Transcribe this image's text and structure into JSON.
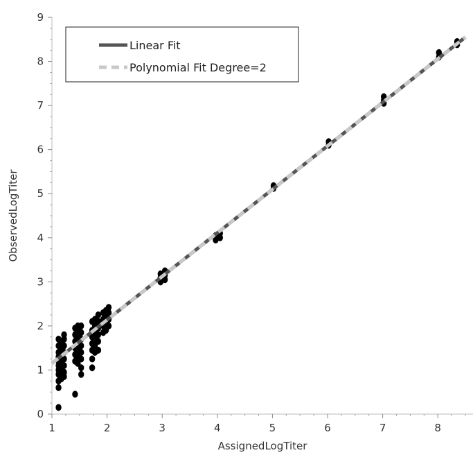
{
  "chart_data": {
    "type": "scatter",
    "xlabel": "AssignedLogTiter",
    "ylabel": "ObservedLogTiter",
    "xlim": [
      1,
      8.5
    ],
    "ylim": [
      0,
      9
    ],
    "xticks": [
      "1",
      "2",
      "3",
      "4",
      "5",
      "6",
      "7",
      "8"
    ],
    "yticks": [
      "0",
      "1",
      "2",
      "3",
      "4",
      "5",
      "6",
      "7",
      "8",
      "9"
    ],
    "legend_position": "top-left",
    "grid": false,
    "series": [
      {
        "name": "Linear Fit",
        "kind": "line",
        "color": "#555555",
        "x": [
          1,
          8.5
        ],
        "y": [
          1.15,
          8.55
        ]
      },
      {
        "name": "Polynomial Fit Degree=2",
        "kind": "dashed-line",
        "color": "#c8c8c8",
        "x": [
          1,
          8.5
        ],
        "y": [
          1.15,
          8.55
        ]
      }
    ],
    "points": [
      [
        1.12,
        0.15
      ],
      [
        1.12,
        0.6
      ],
      [
        1.12,
        0.75
      ],
      [
        1.12,
        0.9
      ],
      [
        1.12,
        1.0
      ],
      [
        1.12,
        1.1
      ],
      [
        1.12,
        1.2
      ],
      [
        1.12,
        1.3
      ],
      [
        1.12,
        1.4
      ],
      [
        1.12,
        1.55
      ],
      [
        1.12,
        1.7
      ],
      [
        1.17,
        0.8
      ],
      [
        1.17,
        0.95
      ],
      [
        1.17,
        1.05
      ],
      [
        1.17,
        1.2
      ],
      [
        1.17,
        1.35
      ],
      [
        1.17,
        1.5
      ],
      [
        1.17,
        1.65
      ],
      [
        1.22,
        0.85
      ],
      [
        1.22,
        0.95
      ],
      [
        1.22,
        1.1
      ],
      [
        1.22,
        1.25
      ],
      [
        1.22,
        1.4
      ],
      [
        1.22,
        1.55
      ],
      [
        1.22,
        1.7
      ],
      [
        1.22,
        1.8
      ],
      [
        1.42,
        0.45
      ],
      [
        1.42,
        1.2
      ],
      [
        1.42,
        1.35
      ],
      [
        1.42,
        1.5
      ],
      [
        1.42,
        1.65
      ],
      [
        1.42,
        1.8
      ],
      [
        1.42,
        1.95
      ],
      [
        1.47,
        1.15
      ],
      [
        1.47,
        1.3
      ],
      [
        1.47,
        1.45
      ],
      [
        1.47,
        1.6
      ],
      [
        1.47,
        1.75
      ],
      [
        1.47,
        1.9
      ],
      [
        1.47,
        2.0
      ],
      [
        1.53,
        0.9
      ],
      [
        1.53,
        1.05
      ],
      [
        1.53,
        1.25
      ],
      [
        1.53,
        1.4
      ],
      [
        1.53,
        1.55
      ],
      [
        1.53,
        1.7
      ],
      [
        1.53,
        1.85
      ],
      [
        1.53,
        2.0
      ],
      [
        1.73,
        1.05
      ],
      [
        1.73,
        1.25
      ],
      [
        1.73,
        1.45
      ],
      [
        1.73,
        1.6
      ],
      [
        1.73,
        1.75
      ],
      [
        1.73,
        1.9
      ],
      [
        1.73,
        2.1
      ],
      [
        1.78,
        1.4
      ],
      [
        1.78,
        1.55
      ],
      [
        1.78,
        1.7
      ],
      [
        1.78,
        1.85
      ],
      [
        1.78,
        2.0
      ],
      [
        1.78,
        2.15
      ],
      [
        1.84,
        1.45
      ],
      [
        1.84,
        1.65
      ],
      [
        1.84,
        1.8
      ],
      [
        1.84,
        1.95
      ],
      [
        1.84,
        2.1
      ],
      [
        1.84,
        2.25
      ],
      [
        1.93,
        1.85
      ],
      [
        1.93,
        2.0
      ],
      [
        1.93,
        2.15
      ],
      [
        1.93,
        2.3
      ],
      [
        1.98,
        1.9
      ],
      [
        1.98,
        2.05
      ],
      [
        1.98,
        2.2
      ],
      [
        1.98,
        2.35
      ],
      [
        2.03,
        2.0
      ],
      [
        2.03,
        2.15
      ],
      [
        2.03,
        2.3
      ],
      [
        2.03,
        2.42
      ],
      [
        2.97,
        3.0
      ],
      [
        2.97,
        3.1
      ],
      [
        2.97,
        3.18
      ],
      [
        3.05,
        3.05
      ],
      [
        3.05,
        3.15
      ],
      [
        3.05,
        3.25
      ],
      [
        3.97,
        3.95
      ],
      [
        3.97,
        4.05
      ],
      [
        4.05,
        4.0
      ],
      [
        4.05,
        4.1
      ],
      [
        5.02,
        5.12
      ],
      [
        5.02,
        5.18
      ],
      [
        6.02,
        6.1
      ],
      [
        6.02,
        6.18
      ],
      [
        7.02,
        7.05
      ],
      [
        7.02,
        7.12
      ],
      [
        7.02,
        7.2
      ],
      [
        8.02,
        8.1
      ],
      [
        8.02,
        8.2
      ],
      [
        8.35,
        8.38
      ],
      [
        8.35,
        8.45
      ]
    ],
    "point_color": "#000000"
  }
}
